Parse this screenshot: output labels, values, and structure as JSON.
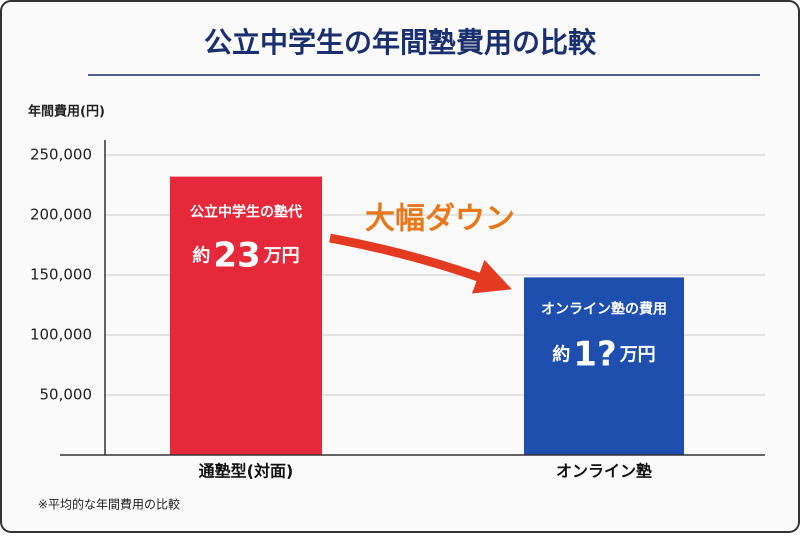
{
  "chart_data": {
    "type": "bar",
    "title": "公立中学生の年間塾費用の比較",
    "y_label": "年間費用(円)",
    "categories": [
      "通塾型(対面)",
      "オンライン塾"
    ],
    "values": [
      232000,
      148000
    ],
    "colors": [
      "#e5283a",
      "#1e4eae"
    ],
    "ylim": [
      0,
      270000
    ],
    "yticks": [
      {
        "value": 50000,
        "label": "50,000"
      },
      {
        "value": 100000,
        "label": "100,000"
      },
      {
        "value": 150000,
        "label": "150,000"
      },
      {
        "value": 200000,
        "label": "200,000"
      },
      {
        "value": 250000,
        "label": "250,000"
      }
    ],
    "grid": true,
    "bar_notes": [
      {
        "caption": "公立中学生の塾代",
        "prefix": "約",
        "figure": "23",
        "suffix": "万円"
      },
      {
        "caption": "オンライン塾の費用",
        "prefix": "約",
        "figure": "1?",
        "suffix": "万円"
      }
    ],
    "arrow_text": "大幅ダウン",
    "footnote": "※平均的な年間費用の比較"
  }
}
